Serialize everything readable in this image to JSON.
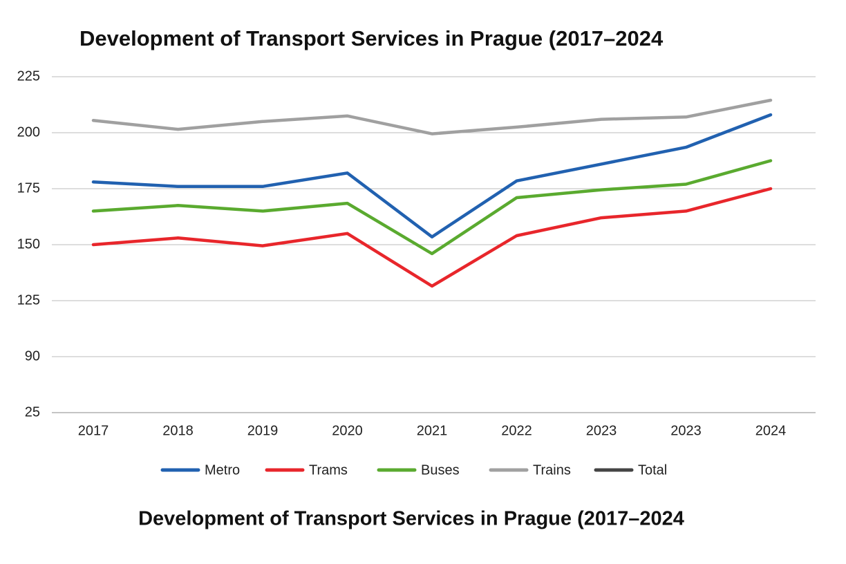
{
  "chart_data": {
    "type": "line",
    "title": "Development of Transport Services in Prague (2017–2024",
    "caption": "Development of Transport Services in Prague (2017–2024",
    "categories": [
      "2017",
      "2018",
      "2019",
      "2020",
      "2021",
      "2022",
      "2023",
      "2023",
      "2024"
    ],
    "series": [
      {
        "name": "Metro",
        "color": "#2161b0",
        "values": [
          178,
          176,
          176,
          182,
          153.5,
          178.5,
          186,
          193.5,
          208
        ]
      },
      {
        "name": "Trams",
        "color": "#e8262b",
        "values": [
          150,
          153,
          149.5,
          155,
          131.5,
          154,
          162,
          165,
          175
        ]
      },
      {
        "name": "Buses",
        "color": "#5aaa2f",
        "values": [
          165,
          167.5,
          165,
          168.5,
          146,
          171,
          174.5,
          177,
          187.5
        ]
      },
      {
        "name": "Trains",
        "color": "#a0a0a0",
        "values": [
          205.5,
          201.5,
          205,
          207.5,
          199.5,
          202.5,
          206,
          207,
          214.5
        ]
      },
      {
        "name": "Total",
        "color": "#444444",
        "values": [
          null,
          null,
          null,
          null,
          null,
          null,
          null,
          null,
          null
        ]
      }
    ],
    "ylim": [
      25,
      225
    ],
    "yticks": [
      25,
      90,
      125,
      150,
      175,
      200,
      225
    ],
    "grid": true,
    "legend": "bottom"
  }
}
